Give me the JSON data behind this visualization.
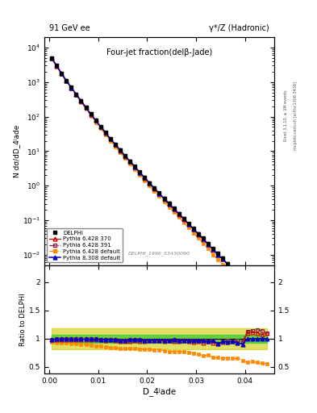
{
  "title_left": "91 GeV ee",
  "title_right": "γ*/Z (Hadronic)",
  "plot_title": "Four-jet fraction(delβ-Jade)",
  "xlabel": "D_4ʲade",
  "ylabel_main": "N dσ/dD_4ʲade",
  "ylabel_ratio": "Ratio to DELPHI",
  "watermark": "DELPHI_1996_S3430090",
  "rivet_text": "Rivet 3.1.10, ≥ 3M events",
  "arxiv_text": "mcplots.cern.ch [arXiv:1306.3436]",
  "x_data": [
    0.0005,
    0.0015,
    0.0025,
    0.0035,
    0.0045,
    0.0055,
    0.0065,
    0.0075,
    0.0085,
    0.0095,
    0.0105,
    0.0115,
    0.0125,
    0.0135,
    0.0145,
    0.0155,
    0.0165,
    0.0175,
    0.0185,
    0.0195,
    0.0205,
    0.0215,
    0.0225,
    0.0235,
    0.0245,
    0.0255,
    0.0265,
    0.0275,
    0.0285,
    0.0295,
    0.0305,
    0.0315,
    0.0325,
    0.0335,
    0.0345,
    0.0355,
    0.0365,
    0.0375,
    0.0385,
    0.0395,
    0.0405,
    0.0415,
    0.0425,
    0.0435,
    0.0445
  ],
  "delphi_y": [
    5000,
    3000,
    1800,
    1100,
    700,
    450,
    290,
    185,
    120,
    78,
    52,
    35,
    23,
    16,
    11,
    7.5,
    5.2,
    3.6,
    2.5,
    1.75,
    1.22,
    0.86,
    0.61,
    0.43,
    0.31,
    0.22,
    0.157,
    0.112,
    0.08,
    0.058,
    0.041,
    0.03,
    0.021,
    0.015,
    0.011,
    0.0079,
    0.0056,
    0.004,
    0.0029,
    0.0021,
    0.0038,
    0.0027,
    0.0019,
    0.0014,
    0.001
  ],
  "delphi_yerr": [
    200,
    120,
    70,
    40,
    25,
    16,
    10,
    7,
    5,
    3.5,
    2.5,
    1.8,
    1.3,
    0.95,
    0.7,
    0.5,
    0.36,
    0.26,
    0.19,
    0.14,
    0.1,
    0.074,
    0.053,
    0.038,
    0.027,
    0.02,
    0.014,
    0.01,
    0.0074,
    0.0054,
    0.0039,
    0.0028,
    0.002,
    0.0015,
    0.0011,
    0.0008,
    0.00057,
    0.00041,
    0.0003,
    0.00022,
    0.00035,
    0.00025,
    0.00018,
    0.00013,
    9.5e-05
  ],
  "py6_370_y": [
    4900,
    2950,
    1780,
    1090,
    690,
    445,
    287,
    183,
    118,
    77,
    51,
    34,
    22.5,
    15.5,
    10.5,
    7.2,
    5.0,
    3.5,
    2.4,
    1.68,
    1.18,
    0.83,
    0.59,
    0.41,
    0.3,
    0.21,
    0.15,
    0.108,
    0.077,
    0.055,
    0.039,
    0.028,
    0.02,
    0.014,
    0.01,
    0.0074,
    0.0053,
    0.0038,
    0.0027,
    0.0019,
    0.0042,
    0.003,
    0.0021,
    0.0015,
    0.0011
  ],
  "py6_391_y": [
    4950,
    2980,
    1790,
    1095,
    695,
    447,
    288,
    184,
    119,
    77.5,
    51.5,
    34.5,
    22.8,
    15.7,
    10.7,
    7.3,
    5.1,
    3.55,
    2.45,
    1.7,
    1.19,
    0.84,
    0.595,
    0.42,
    0.3,
    0.215,
    0.153,
    0.109,
    0.078,
    0.056,
    0.04,
    0.029,
    0.02,
    0.0145,
    0.01,
    0.0075,
    0.0054,
    0.0038,
    0.0028,
    0.002,
    0.0043,
    0.0031,
    0.0022,
    0.0016,
    0.0011
  ],
  "py6_def_y": [
    4700,
    2800,
    1680,
    1020,
    640,
    410,
    262,
    165,
    106,
    68,
    45,
    30,
    19.5,
    13.5,
    9.1,
    6.2,
    4.3,
    3.0,
    2.05,
    1.42,
    0.99,
    0.69,
    0.49,
    0.34,
    0.24,
    0.17,
    0.122,
    0.086,
    0.061,
    0.043,
    0.03,
    0.021,
    0.015,
    0.01,
    0.0073,
    0.0052,
    0.0037,
    0.0026,
    0.0019,
    0.0013,
    0.0022,
    0.0016,
    0.0011,
    0.00079,
    0.00056
  ],
  "py8_def_y": [
    4950,
    2980,
    1790,
    1095,
    695,
    447,
    288,
    184,
    119,
    77.5,
    51.5,
    34.5,
    22.8,
    15.7,
    10.7,
    7.3,
    5.1,
    3.55,
    2.45,
    1.7,
    1.19,
    0.84,
    0.595,
    0.42,
    0.3,
    0.215,
    0.153,
    0.109,
    0.078,
    0.056,
    0.04,
    0.029,
    0.02,
    0.0145,
    0.01,
    0.0075,
    0.0053,
    0.0038,
    0.0027,
    0.0019,
    0.0038,
    0.0027,
    0.0019,
    0.0014,
    0.001
  ],
  "color_delphi": "#000000",
  "color_py6_370": "#cc0000",
  "color_py6_391": "#882244",
  "color_py6_def": "#ff8800",
  "color_py8_def": "#0000cc",
  "color_green": "#33cc33",
  "color_yellow": "#cccc00",
  "xlim": [
    -0.001,
    0.046
  ],
  "ylim_main_log": [
    0.005,
    20000
  ],
  "ylim_ratio": [
    0.38,
    2.3
  ],
  "ratio_yticks": [
    0.5,
    1.0,
    1.5,
    2.0
  ],
  "legend_entries": [
    "DELPHI",
    "Pythia 6.428 370",
    "Pythia 6.428 391",
    "Pythia 6.428 default",
    "Pythia 8.308 default"
  ]
}
